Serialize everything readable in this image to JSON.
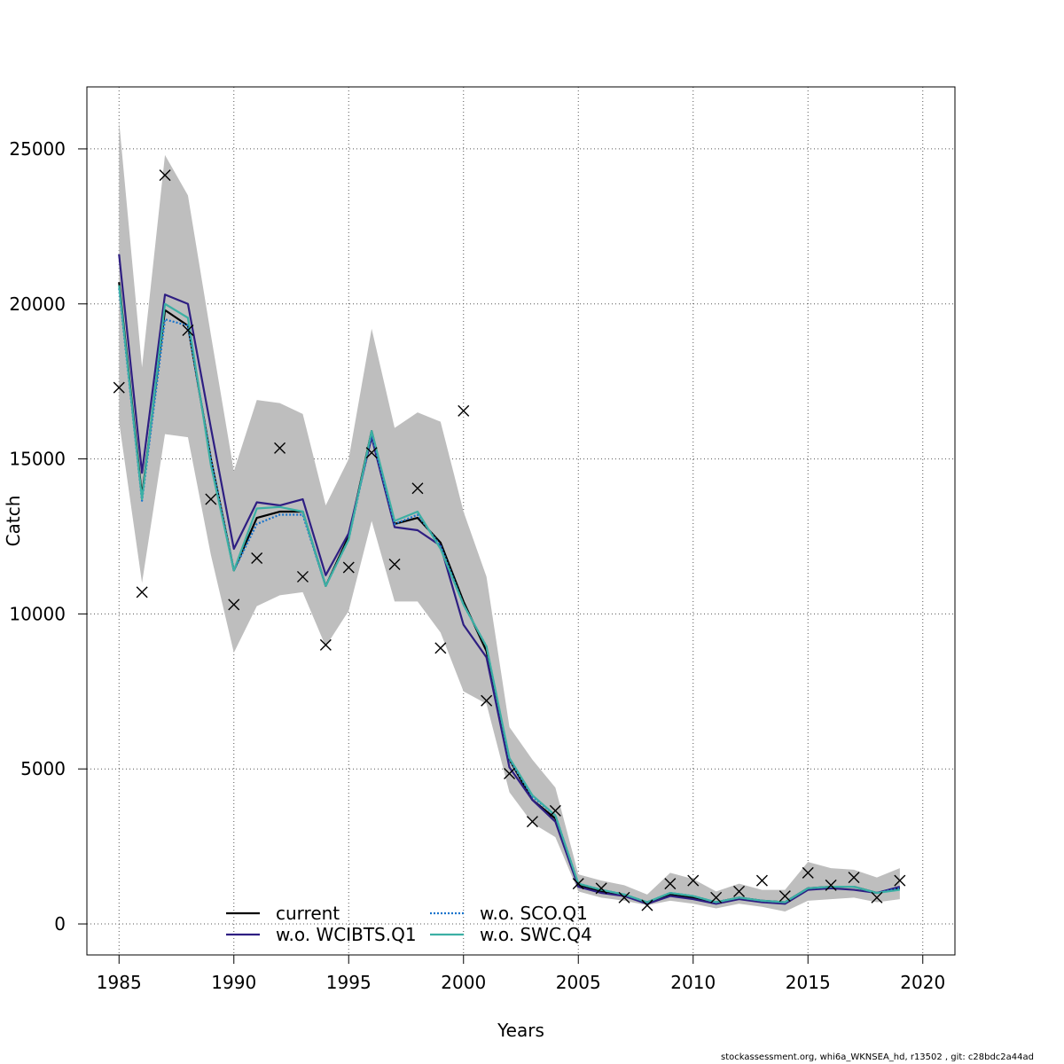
{
  "footer": "stockassessment.org, whi6a_WKNSEA_hd, r13502 , git: c28bdc2a44ad",
  "chart_data": {
    "type": "line",
    "xlabel": "Years",
    "ylabel": "Catch",
    "xlim": [
      1983.6,
      2021.4
    ],
    "ylim": [
      -1000,
      27000
    ],
    "x_ticks": [
      1985,
      1990,
      1995,
      2000,
      2005,
      2010,
      2015,
      2020
    ],
    "y_ticks": [
      0,
      5000,
      10000,
      15000,
      20000,
      25000
    ],
    "grid": true,
    "legend_position": "bottom",
    "years": [
      1985,
      1986,
      1987,
      1988,
      1989,
      1990,
      1991,
      1992,
      1993,
      1994,
      1995,
      1996,
      1997,
      1998,
      1999,
      2000,
      2001,
      2002,
      2003,
      2004,
      2005,
      2006,
      2007,
      2008,
      2009,
      2010,
      2011,
      2012,
      2013,
      2014,
      2015,
      2016,
      2017,
      2018,
      2019
    ],
    "observed": {
      "marker": "x",
      "color": "#000000",
      "values": [
        17300,
        10700,
        24150,
        19150,
        13700,
        10300,
        11800,
        15350,
        11200,
        9000,
        11500,
        15200,
        11600,
        14050,
        8900,
        16550,
        7200,
        4850,
        3300,
        3650,
        1300,
        1150,
        850,
        600,
        1300,
        1400,
        850,
        1050,
        1400,
        900,
        1650,
        1250,
        1500,
        850,
        1400
      ]
    },
    "band": {
      "color": "#bebebe",
      "lower": [
        16200,
        11000,
        15800,
        15700,
        11900,
        8750,
        10250,
        10600,
        10700,
        8950,
        10100,
        13000,
        10400,
        10400,
        9400,
        7500,
        7100,
        4250,
        3250,
        2800,
        1050,
        850,
        750,
        600,
        750,
        650,
        500,
        650,
        550,
        400,
        750,
        800,
        850,
        700,
        800
      ],
      "upper": [
        25900,
        17950,
        24800,
        23500,
        19000,
        14600,
        16900,
        16800,
        16450,
        13500,
        15000,
        19200,
        16000,
        16500,
        16200,
        13300,
        11200,
        6350,
        5300,
        4400,
        1600,
        1400,
        1250,
        950,
        1650,
        1450,
        1050,
        1300,
        1100,
        1100,
        2000,
        1800,
        1750,
        1500,
        1800
      ]
    },
    "series": [
      {
        "name": "current",
        "color": "#000000",
        "style": "solid",
        "values": [
          20700,
          13800,
          19800,
          19300,
          15000,
          11400,
          13100,
          13300,
          13300,
          10900,
          12500,
          15900,
          12900,
          13100,
          12300,
          10400,
          8800,
          5300,
          4000,
          3400,
          1250,
          1050,
          900,
          700,
          950,
          850,
          700,
          850,
          750,
          700,
          1150,
          1200,
          1200,
          1000,
          1150
        ]
      },
      {
        "name": "w.o. WCIBTS.Q1",
        "color": "#2e1e82",
        "style": "solid",
        "values": [
          21600,
          14550,
          20300,
          20000,
          16000,
          12100,
          13600,
          13500,
          13700,
          11250,
          12600,
          15700,
          12800,
          12700,
          12200,
          9650,
          8600,
          5050,
          4000,
          3300,
          1200,
          1000,
          900,
          650,
          900,
          800,
          650,
          800,
          700,
          650,
          1100,
          1150,
          1100,
          1000,
          1200
        ]
      },
      {
        "name": "w.o. SCO.Q1",
        "color": "#1874cd",
        "style": "dotted",
        "values": [
          20500,
          13650,
          19500,
          19300,
          15000,
          11400,
          12900,
          13200,
          13200,
          10900,
          12400,
          15800,
          12900,
          13200,
          12200,
          10300,
          8950,
          5300,
          4100,
          3500,
          1300,
          1100,
          950,
          700,
          1000,
          900,
          700,
          850,
          750,
          700,
          1150,
          1200,
          1200,
          1000,
          1150
        ]
      },
      {
        "name": "w.o. SWC.Q4",
        "color": "#3cb0a4",
        "style": "solid",
        "values": [
          20600,
          13700,
          20000,
          19550,
          14800,
          11400,
          13400,
          13450,
          13300,
          10900,
          12400,
          15900,
          13000,
          13300,
          12100,
          10300,
          8950,
          5350,
          4150,
          3500,
          1300,
          1100,
          950,
          700,
          1000,
          900,
          700,
          850,
          750,
          700,
          1150,
          1200,
          1200,
          1000,
          1100
        ]
      }
    ]
  }
}
